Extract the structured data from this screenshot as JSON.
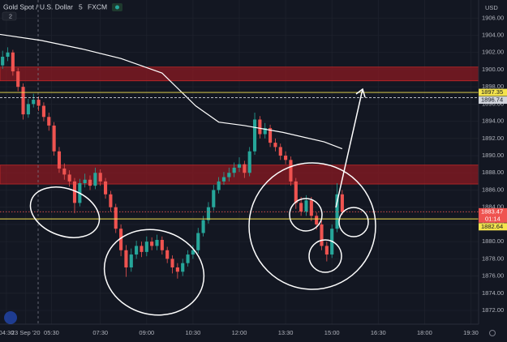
{
  "chart_data": {
    "type": "candlestick",
    "title": "Gold Spot / U.S. Dollar",
    "interval": "5",
    "source": "FXCM",
    "indicator_count": "2",
    "currency": "USD",
    "up_color": "#26a69a",
    "down_color": "#ef5350",
    "grid": true,
    "x": [
      1,
      3,
      5,
      7,
      9,
      11,
      13,
      15,
      17,
      19,
      21,
      23,
      25,
      27,
      29,
      31,
      33,
      35,
      37,
      39,
      41,
      43,
      45,
      47,
      49,
      51,
      53,
      55,
      57,
      59,
      61,
      63,
      65,
      67,
      69,
      71,
      73,
      75,
      77,
      79,
      81,
      83,
      85,
      87,
      89,
      91,
      93,
      95,
      97,
      99,
      101,
      103,
      105,
      107,
      109,
      111,
      113,
      115,
      117,
      119,
      121,
      123,
      125,
      127,
      129,
      131,
      133
    ],
    "open": [
      1900.5,
      1901.5,
      1902,
      1899.8,
      1898,
      1894.8,
      1896,
      1896.5,
      1895.8,
      1894.5,
      1893.5,
      1890.5,
      1888.5,
      1887.8,
      1887,
      1884.5,
      1886.8,
      1887.2,
      1886.5,
      1888,
      1887,
      1885.5,
      1884,
      1881.5,
      1879,
      1877,
      1878.5,
      1879.5,
      1878.8,
      1880,
      1879.5,
      1880.2,
      1879,
      1878,
      1877,
      1876.5,
      1877.5,
      1878.5,
      1879,
      1881,
      1882.5,
      1884,
      1886,
      1887,
      1887.5,
      1888,
      1888.6,
      1889,
      1888,
      1890.5,
      1894.2,
      1892.5,
      1893.2,
      1891.5,
      1891,
      1890,
      1889.5,
      1887,
      1884.5,
      1883.5,
      1884.8,
      1883,
      1882,
      1879.5,
      1878.5,
      1881.5,
      1885.5
    ],
    "high": [
      1902.2,
      1902.6,
      1902.3,
      1900.2,
      1898.4,
      1896.6,
      1897.2,
      1896.9,
      1896.2,
      1895.0,
      1893.9,
      1891.0,
      1889.1,
      1888.3,
      1887.4,
      1887.3,
      1887.9,
      1887.7,
      1888.6,
      1888.4,
      1887.4,
      1885.9,
      1884.4,
      1882.0,
      1879.6,
      1879.2,
      1880.1,
      1880.0,
      1880.6,
      1880.5,
      1880.8,
      1880.6,
      1879.4,
      1878.4,
      1877.5,
      1878.0,
      1879.0,
      1879.6,
      1881.6,
      1883.0,
      1884.6,
      1886.6,
      1887.5,
      1888.1,
      1888.6,
      1889.2,
      1889.8,
      1889.4,
      1891.0,
      1895.0,
      1894.6,
      1893.8,
      1893.6,
      1892.0,
      1891.4,
      1890.5,
      1889.9,
      1887.4,
      1885.2,
      1885.4,
      1885.2,
      1883.4,
      1882.4,
      1880.0,
      1882.0,
      1886.8,
      1886.0
    ],
    "low": [
      1900.1,
      1901.0,
      1899.3,
      1897.5,
      1894.2,
      1894.4,
      1895.6,
      1895.2,
      1894.0,
      1892.9,
      1890.0,
      1888.0,
      1887.2,
      1886.4,
      1883.3,
      1884.1,
      1886.3,
      1886.0,
      1886.1,
      1886.5,
      1885.0,
      1883.5,
      1881.0,
      1878.3,
      1875.9,
      1876.5,
      1878.0,
      1878.2,
      1878.3,
      1879.0,
      1879.0,
      1878.5,
      1877.5,
      1876.3,
      1875.7,
      1876.0,
      1877.1,
      1878.0,
      1878.6,
      1880.6,
      1882.1,
      1883.6,
      1885.6,
      1886.6,
      1887.0,
      1887.5,
      1888.1,
      1887.4,
      1887.6,
      1890.1,
      1892.0,
      1892.0,
      1891.0,
      1890.5,
      1889.5,
      1889.0,
      1886.5,
      1883.8,
      1883.0,
      1883.0,
      1882.4,
      1881.4,
      1879.0,
      1877.7,
      1878.1,
      1881.1,
      1883.1
    ],
    "close": [
      1901.5,
      1902,
      1899.8,
      1898,
      1894.8,
      1896,
      1896.5,
      1895.8,
      1894.5,
      1893.5,
      1890.5,
      1888.5,
      1887.8,
      1887,
      1884.5,
      1886.8,
      1887.2,
      1886.5,
      1888,
      1887,
      1885.5,
      1884,
      1881.5,
      1879,
      1877,
      1878.5,
      1879.5,
      1878.8,
      1880,
      1879.5,
      1880.2,
      1879,
      1878,
      1877,
      1876.5,
      1877.5,
      1878.5,
      1879,
      1881,
      1882.5,
      1884,
      1886,
      1887,
      1887.5,
      1888,
      1888.6,
      1889,
      1888,
      1890.5,
      1894.2,
      1892.5,
      1893.2,
      1891.5,
      1891,
      1890,
      1889.5,
      1887,
      1884.5,
      1883.5,
      1884.8,
      1883,
      1882,
      1879.5,
      1878.5,
      1881.5,
      1885.5,
      1883.5
    ],
    "xlim": [
      0,
      186
    ],
    "xticks": [
      {
        "value": 2.5,
        "label": "04:30"
      },
      {
        "value": 10,
        "label": "23 Sep '20"
      },
      {
        "value": 20,
        "label": "05:30"
      },
      {
        "value": 39,
        "label": "07:30"
      },
      {
        "value": 57,
        "label": "09:00"
      },
      {
        "value": 75,
        "label": "10:30"
      },
      {
        "value": 93,
        "label": "12:00"
      },
      {
        "value": 111,
        "label": "13:30"
      },
      {
        "value": 129,
        "label": "15:00"
      },
      {
        "value": 147,
        "label": "16:30"
      },
      {
        "value": 165,
        "label": "18:00"
      },
      {
        "value": 183,
        "label": "19:30"
      }
    ],
    "ylim": [
      1870.4,
      1908.1
    ],
    "yticks": [
      {
        "value": 1872,
        "label": "1872.00"
      },
      {
        "value": 1874,
        "label": "1874.00"
      },
      {
        "value": 1876,
        "label": "1876.00"
      },
      {
        "value": 1878,
        "label": "1878.00"
      },
      {
        "value": 1880,
        "label": "1880.00"
      },
      {
        "value": 1882,
        "label": "1882.00"
      },
      {
        "value": 1884,
        "label": "1884.00"
      },
      {
        "value": 1886,
        "label": "1886.00"
      },
      {
        "value": 1888,
        "label": "1888.00"
      },
      {
        "value": 1890,
        "label": "1890.00"
      },
      {
        "value": 1892,
        "label": "1892.00"
      },
      {
        "value": 1894,
        "label": "1894.00"
      },
      {
        "value": 1896,
        "label": "1896.00"
      },
      {
        "value": 1898,
        "label": "1898.00"
      },
      {
        "value": 1900,
        "label": "1900.00"
      },
      {
        "value": 1902,
        "label": "1902.00"
      },
      {
        "value": 1904,
        "label": "1904.00"
      },
      {
        "value": 1906,
        "label": "1906.00"
      }
    ],
    "moving_average": {
      "color": "#ffffff",
      "x": [
        0,
        16,
        32,
        47,
        63,
        76,
        85,
        95,
        110,
        126,
        133
      ],
      "values": [
        1904.1,
        1903.4,
        1902.4,
        1901.3,
        1899.6,
        1895.8,
        1893.9,
        1893.5,
        1892.7,
        1891.6,
        1890.8
      ]
    },
    "zones": [
      {
        "from": 1898.7,
        "to": 1900.3,
        "color": "#8b1a22"
      },
      {
        "from": 1886.7,
        "to": 1888.9,
        "color": "#8b1a22"
      }
    ],
    "price_lines": [
      {
        "value": 1897.35,
        "color": "#f4e34d",
        "style": "solid"
      },
      {
        "value": 1896.74,
        "color": "#d1d4dc",
        "style": "dashed"
      },
      {
        "value": 1883.47,
        "color": "#ef5350",
        "style": "dotted",
        "countdown": "01:14"
      },
      {
        "value": 1882.64,
        "color": "#f4e34d",
        "style": "solid"
      }
    ]
  }
}
